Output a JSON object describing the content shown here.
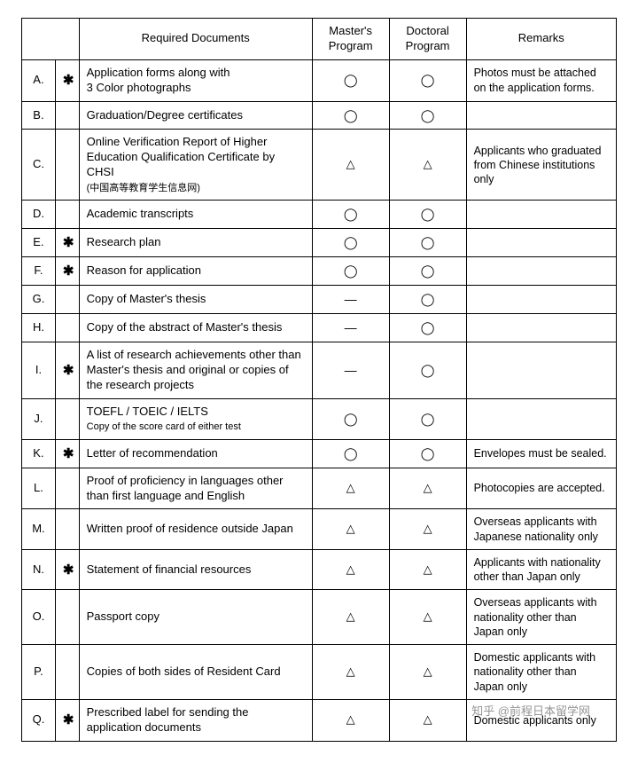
{
  "symbols": {
    "circle": "◯",
    "triangle": "△",
    "dash": "—",
    "asterisk": "✱"
  },
  "headers": {
    "documents": "Required Documents",
    "master": "Master's\nProgram",
    "doctor": "Doctoral\nProgram",
    "remarks": "Remarks"
  },
  "rows": [
    {
      "label": "A.",
      "ast": true,
      "doc": "Application forms along with\n3 Color photographs",
      "master": "circle",
      "doctor": "circle",
      "remarks": "Photos must be attached on the application forms."
    },
    {
      "label": "B.",
      "ast": false,
      "doc": "Graduation/Degree certificates",
      "master": "circle",
      "doctor": "circle",
      "remarks": ""
    },
    {
      "label": "C.",
      "ast": false,
      "doc": "Online Verification Report of Higher Education Qualification Certificate by CHSI",
      "sub": "(中国高等教育学生信息网)",
      "master": "triangle",
      "doctor": "triangle",
      "remarks": "Applicants who graduated from Chinese institutions only"
    },
    {
      "label": "D.",
      "ast": false,
      "doc": "Academic transcripts",
      "master": "circle",
      "doctor": "circle",
      "remarks": ""
    },
    {
      "label": "E.",
      "ast": true,
      "doc": "Research plan",
      "master": "circle",
      "doctor": "circle",
      "remarks": ""
    },
    {
      "label": "F.",
      "ast": true,
      "doc": "Reason for application",
      "master": "circle",
      "doctor": "circle",
      "remarks": ""
    },
    {
      "label": "G.",
      "ast": false,
      "doc": "Copy of Master's thesis",
      "master": "dash",
      "doctor": "circle",
      "remarks": ""
    },
    {
      "label": "H.",
      "ast": false,
      "doc": "Copy of the abstract of Master's thesis",
      "master": "dash",
      "doctor": "circle",
      "remarks": ""
    },
    {
      "label": "I.",
      "ast": true,
      "doc": "A list of research achievements other than Master's thesis and original or copies of the research projects",
      "master": "dash",
      "doctor": "circle",
      "remarks": ""
    },
    {
      "label": "J.",
      "ast": false,
      "doc": "TOEFL / TOEIC / IELTS",
      "sub": "Copy of the score card of either test",
      "master": "circle",
      "doctor": "circle",
      "remarks": ""
    },
    {
      "label": "K.",
      "ast": true,
      "doc": "Letter of recommendation",
      "master": "circle",
      "doctor": "circle",
      "remarks": "Envelopes must be sealed."
    },
    {
      "label": "L.",
      "ast": false,
      "doc": "Proof of proficiency in languages other than first language and English",
      "master": "triangle",
      "doctor": "triangle",
      "remarks": "Photocopies are accepted."
    },
    {
      "label": "M.",
      "ast": false,
      "doc": "Written proof of residence outside Japan",
      "master": "triangle",
      "doctor": "triangle",
      "remarks": "Overseas applicants with Japanese nationality only"
    },
    {
      "label": "N.",
      "ast": true,
      "doc": "Statement of financial resources",
      "master": "triangle",
      "doctor": "triangle",
      "remarks": "Applicants with nationality other than Japan only"
    },
    {
      "label": "O.",
      "ast": false,
      "doc": "Passport copy",
      "master": "triangle",
      "doctor": "triangle",
      "remarks": "Overseas applicants with nationality other than Japan only"
    },
    {
      "label": "P.",
      "ast": false,
      "doc": "Copies of both sides of Resident Card",
      "master": "triangle",
      "doctor": "triangle",
      "remarks": "Domestic applicants with nationality other than Japan only"
    },
    {
      "label": "Q.",
      "ast": true,
      "doc": "Prescribed label for sending the application documents",
      "master": "triangle",
      "doctor": "triangle",
      "remarks": "Domestic applicants only"
    }
  ],
  "watermark": "知乎 @前程日本留学网"
}
